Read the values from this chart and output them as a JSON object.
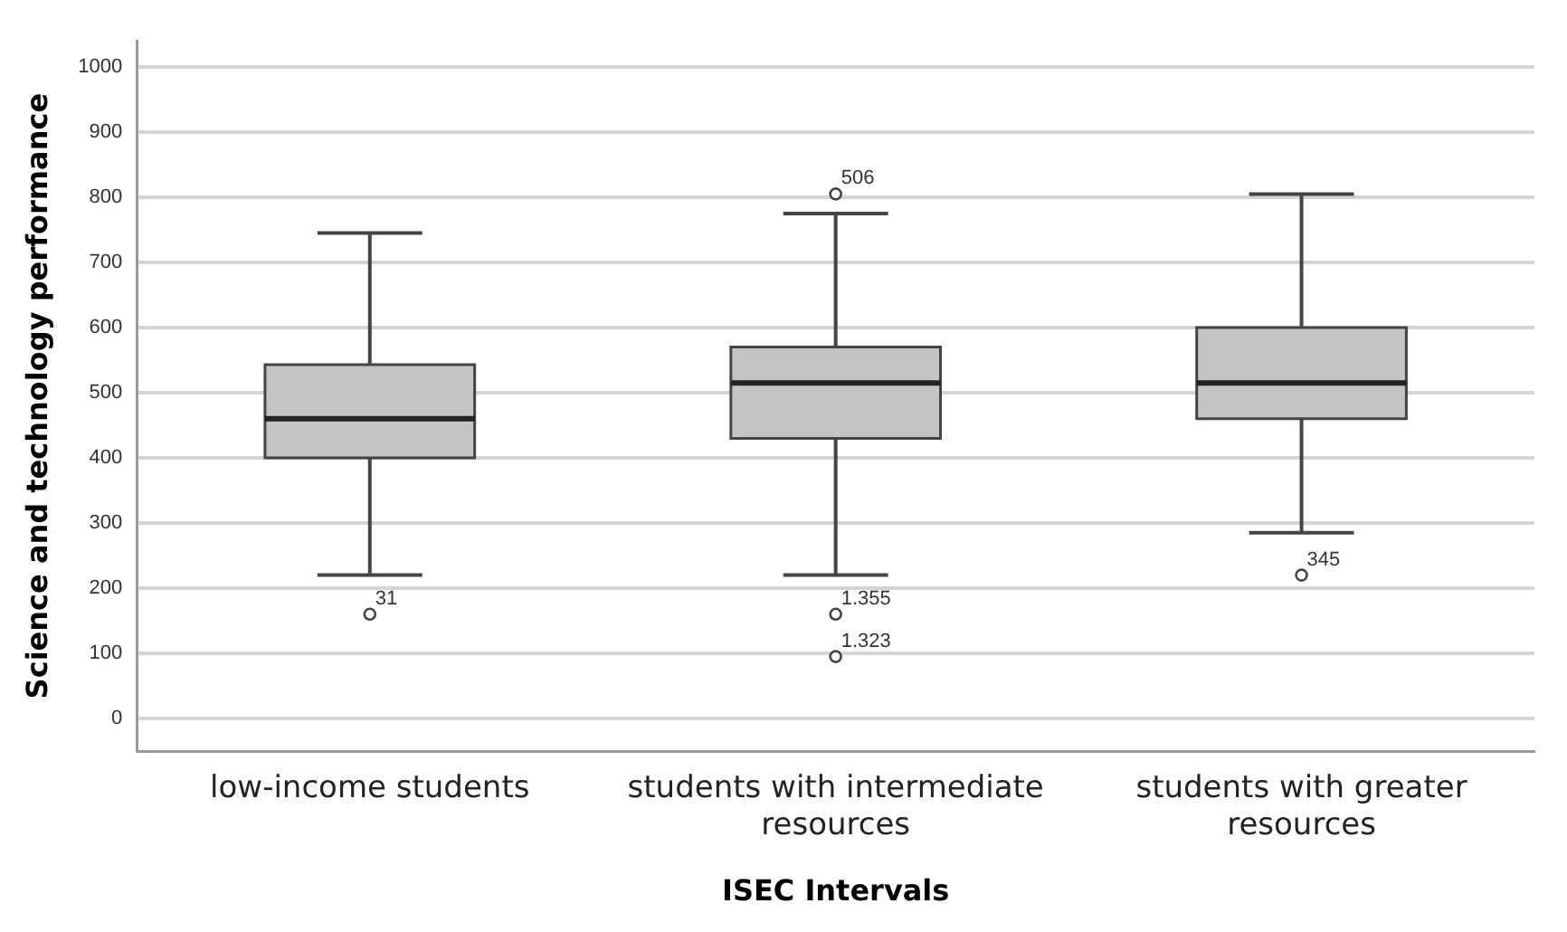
{
  "chart_data": {
    "type": "box",
    "xlabel": "ISEC Intervals",
    "ylabel": "Science and technology performance",
    "categories": [
      "low-income students",
      "students with intermediate resources",
      "students with greater resources"
    ],
    "boxes": [
      {
        "low": 220,
        "q1": 400,
        "median": 460,
        "q3": 543,
        "high": 745,
        "outliers": [
          160
        ]
      },
      {
        "low": 220,
        "q1": 430,
        "median": 515,
        "q3": 570,
        "high": 775,
        "outliers": [
          805,
          160,
          95
        ]
      },
      {
        "low": 285,
        "q1": 460,
        "median": 515,
        "q3": 600,
        "high": 805,
        "outliers": [
          220
        ]
      }
    ],
    "color": "#c4c4c4",
    "ylim": [
      -50,
      1040
    ],
    "yticks": [
      0,
      100,
      200,
      300,
      400,
      500,
      600,
      700,
      800,
      900,
      1000
    ],
    "grid": "y",
    "legend": false,
    "annotations": [
      "31",
      "506",
      "1.355",
      "1.323",
      "345"
    ]
  }
}
